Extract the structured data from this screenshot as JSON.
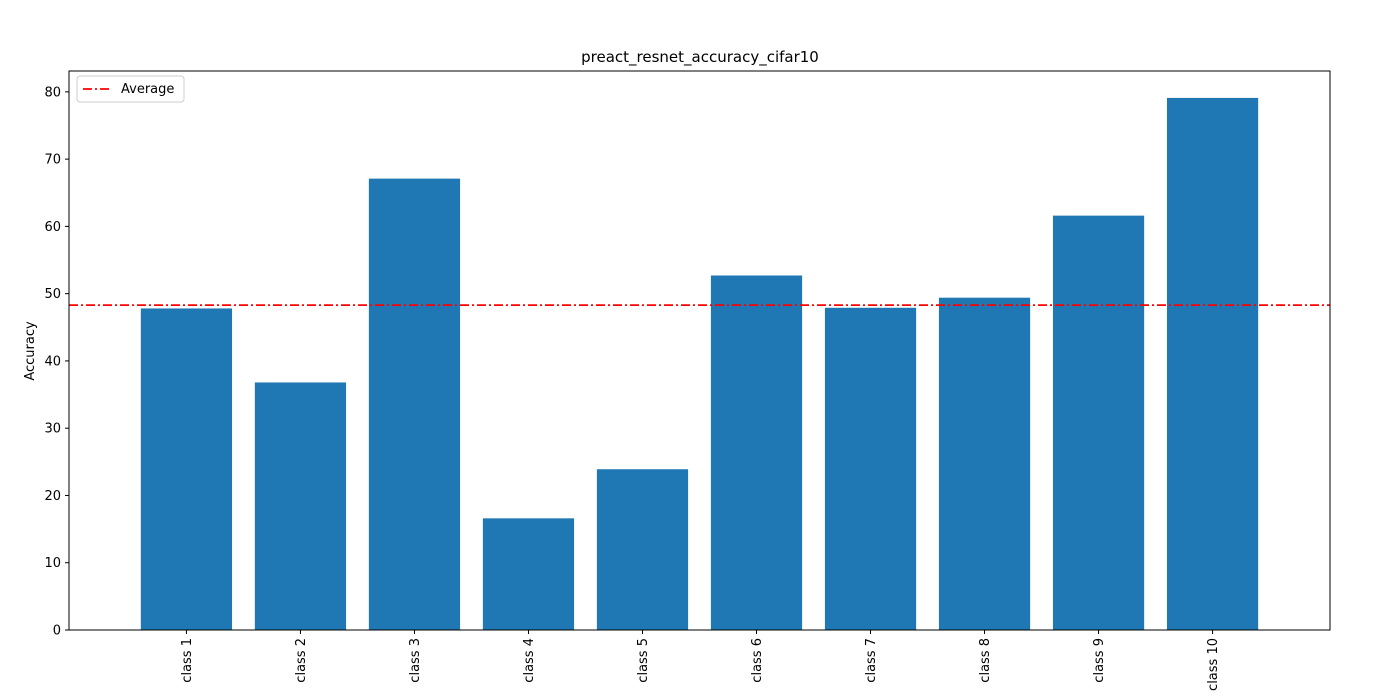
{
  "chart_data": {
    "type": "bar",
    "title": "preact_resnet_accuracy_cifar10",
    "xlabel": "",
    "ylabel": "Accuracy",
    "categories": [
      "class 1",
      "class 2",
      "class 3",
      "class 4",
      "class 5",
      "class 6",
      "class 7",
      "class 8",
      "class 9",
      "class 10"
    ],
    "values": [
      47.8,
      36.8,
      67.1,
      16.6,
      23.9,
      52.7,
      47.9,
      49.4,
      61.6,
      79.1
    ],
    "ylim": [
      0,
      83.1
    ],
    "yticks": [
      0,
      10,
      20,
      30,
      40,
      50,
      60,
      70,
      80
    ],
    "average": 48.3,
    "legend": {
      "label": "Average",
      "placement": "top-left"
    },
    "grid": false,
    "colors": {
      "bar": "#1f77b4",
      "average_line": "#ff0000",
      "axis": "#000000"
    }
  }
}
